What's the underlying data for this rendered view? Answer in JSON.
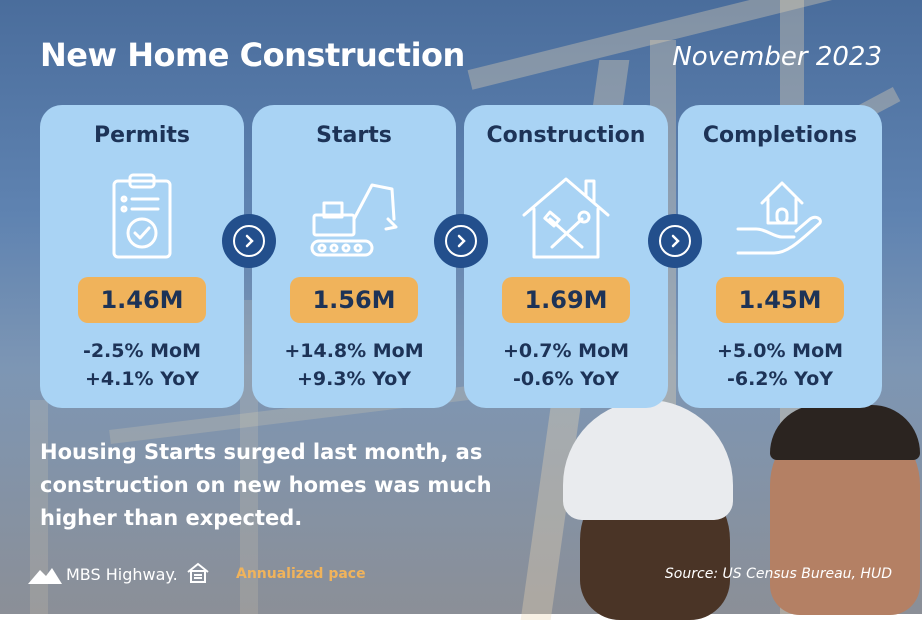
{
  "header": {
    "title": "New Home Construction",
    "date": "November 2023"
  },
  "cards": [
    {
      "title": "Permits",
      "icon": "clipboard-check-icon",
      "value": "1.46M",
      "mom": "-2.5% MoM",
      "yoy": "+4.1% YoY"
    },
    {
      "title": "Starts",
      "icon": "excavator-icon",
      "value": "1.56M",
      "mom": "+14.8% MoM",
      "yoy": "+9.3% YoY"
    },
    {
      "title": "Construction",
      "icon": "house-tools-icon",
      "value": "1.69M",
      "mom": "+0.7% MoM",
      "yoy": "-0.6% YoY"
    },
    {
      "title": "Completions",
      "icon": "house-in-hand-icon",
      "value": "1.45M",
      "mom": "+5.0% MoM",
      "yoy": "-6.2% YoY"
    }
  ],
  "summary": "Housing Starts surged last month, as construction on new homes was much higher than expected.",
  "footer": {
    "brand": "MBS Highway.",
    "legend_note": "Annualized pace",
    "source": "Source: US Census Bureau, HUD"
  },
  "colors": {
    "card_bg": "#a9d3f4",
    "pill": "#f0b35b",
    "text_dark": "#1d3357",
    "arrow": "#234f8c"
  }
}
